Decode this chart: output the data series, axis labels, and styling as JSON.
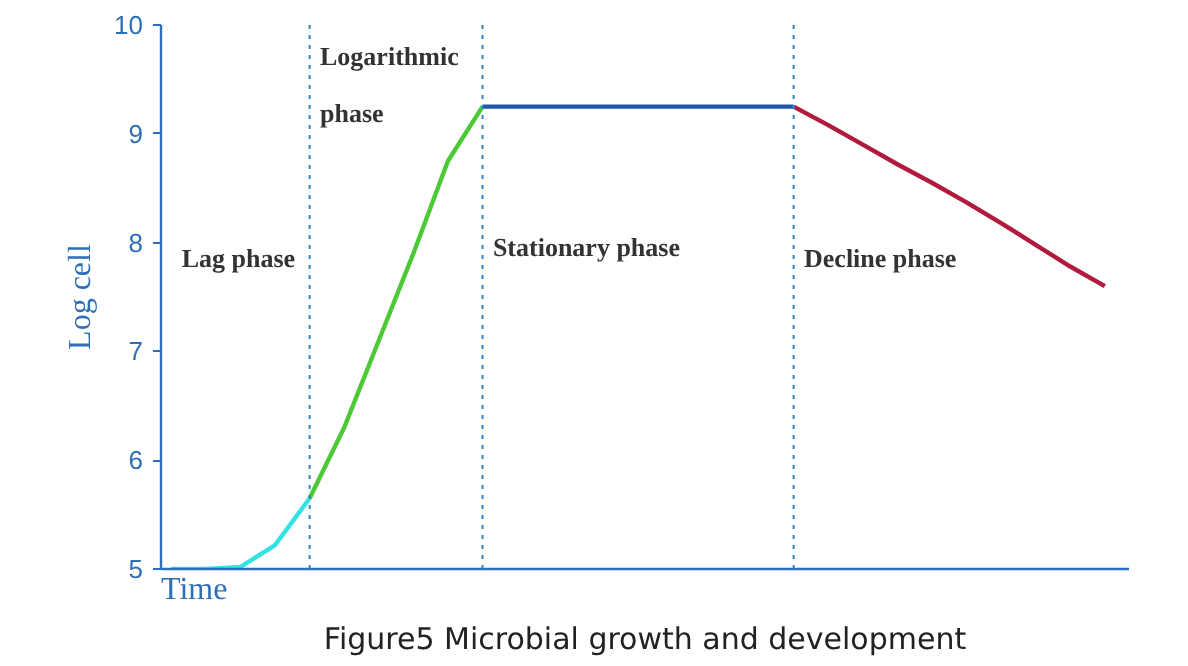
{
  "chart_data": {
    "type": "line",
    "title": "Figure5 Microbial growth and development",
    "xlabel": "Time",
    "ylabel": "Log cell",
    "categories": [
      null,
      null,
      null,
      null,
      null,
      null,
      null,
      null,
      null,
      null,
      null,
      null,
      null,
      null,
      null,
      null,
      null,
      null,
      null,
      null,
      null,
      null,
      null,
      null,
      null,
      null,
      null,
      null
    ],
    "series": [
      {
        "color": "#33e3e3",
        "values": [
          5.0,
          5.0,
          5.02,
          5.22,
          5.65,
          null,
          null,
          null,
          null,
          null,
          null,
          null,
          null,
          null,
          null,
          null,
          null,
          null,
          null,
          null,
          null,
          null,
          null,
          null,
          null,
          null,
          null,
          null
        ]
      },
      {
        "color": "#4cc935",
        "values": [
          null,
          null,
          null,
          null,
          5.65,
          6.3,
          7.1,
          7.9,
          8.75,
          9.25,
          null,
          null,
          null,
          null,
          null,
          null,
          null,
          null,
          null,
          null,
          null,
          null,
          null,
          null,
          null,
          null,
          null,
          null
        ]
      },
      {
        "color": "#2356a8",
        "values": [
          null,
          null,
          null,
          null,
          null,
          null,
          null,
          null,
          null,
          9.25,
          9.25,
          9.25,
          9.25,
          9.25,
          9.25,
          9.25,
          9.25,
          9.25,
          9.25,
          null,
          null,
          null,
          null,
          null,
          null,
          null,
          null,
          null
        ]
      },
      {
        "color": "#b01a3c",
        "values": [
          null,
          null,
          null,
          null,
          null,
          null,
          null,
          null,
          null,
          null,
          null,
          null,
          null,
          null,
          null,
          null,
          null,
          null,
          9.25,
          9.08,
          8.9,
          8.72,
          8.55,
          8.37,
          8.18,
          7.98,
          7.78,
          7.6
        ]
      }
    ],
    "ylim": [
      5,
      10
    ],
    "yticks": [
      5,
      6,
      7,
      8,
      9,
      10
    ],
    "grid": false,
    "tick_labels": "y",
    "marker": "none",
    "line_style": "solid",
    "annotations": [
      "Lag phase",
      "Logarithmic\nphase",
      "Stationary phase",
      "Decline phase"
    ]
  }
}
